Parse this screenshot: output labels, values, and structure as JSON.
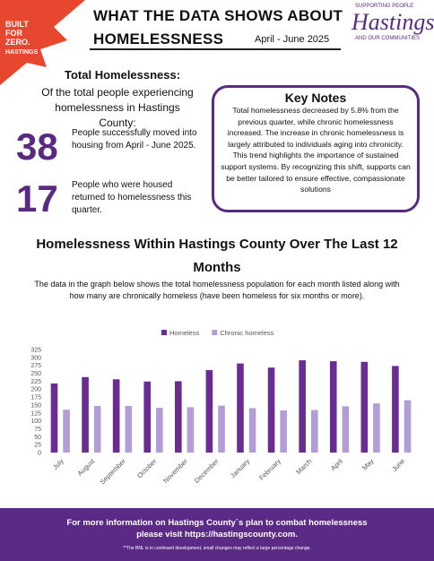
{
  "header": {
    "logo_text": [
      "BUILT",
      "FOR",
      "ZERO.",
      "HASTINGS"
    ],
    "title_line1": "WHAT THE DATA SHOWS ABOUT",
    "title_line2": "HOMELESSNESS",
    "date": "April - June 2025",
    "brand_top": "SUPPORTING PEOPLE",
    "brand_name": "Hastings",
    "brand_bottom": "AND OUR COMMUNITIES"
  },
  "summary": {
    "heading": "Total Homelessness:",
    "subheading": "Of the total people experiencing homelessness in Hastings County:",
    "stats": [
      {
        "number": "38",
        "text": "People successfully moved into housing from April - June 2025."
      },
      {
        "number": "17",
        "text": "People who were housed returned to homelessness this quarter."
      }
    ]
  },
  "key_notes": {
    "title": "Key Notes",
    "body": "Total homelessness decreased by 5.8% from the previous quarter, while chronic homelessness increased. The increase in chronic homelessness is largely attributed to individuals aging into chronicity. This trend highlights the importance of sustained support systems. By recognizing this shift, supports can be better tailored to ensure effective, compassionate solutions"
  },
  "chart_section": {
    "title": "Homelessness Within Hastings County Over The Last 12 Months",
    "description": "The data in the graph below shows the total homelessness population for each month listed along with how many are chronically homeless (have been homeless for six months or more)."
  },
  "chart_data": {
    "type": "bar",
    "categories": [
      "July",
      "August",
      "September",
      "October",
      "November",
      "December",
      "January",
      "February",
      "March",
      "April",
      "May",
      "June"
    ],
    "series": [
      {
        "name": "Homeless",
        "color": "#6a2c91",
        "values": [
          218,
          238,
          231,
          224,
          225,
          260,
          281,
          268,
          291,
          288,
          286,
          273
        ]
      },
      {
        "name": "Chronic homeless",
        "color": "#b39dd6",
        "values": [
          135,
          147,
          147,
          141,
          143,
          148,
          140,
          133,
          134,
          146,
          155,
          165
        ]
      }
    ],
    "ylim": [
      0,
      325
    ],
    "yticks": [
      0,
      25,
      50,
      75,
      100,
      125,
      150,
      175,
      200,
      225,
      250,
      275,
      300,
      325
    ],
    "grid": false,
    "legend": "top"
  },
  "footer": {
    "text": "For more information on Hastings County`s plan to combat homelessness please visit https://hastingscounty.com.",
    "note": "**The BNL is in continued development, small changes may reflect a large percentage change."
  }
}
